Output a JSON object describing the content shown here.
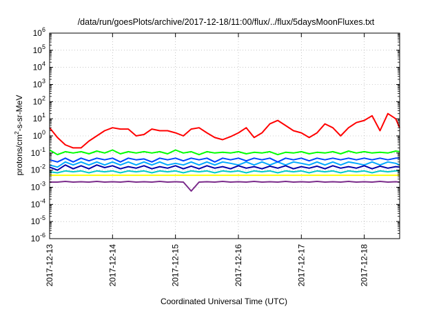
{
  "chart_data": {
    "type": "line",
    "title": "/data/run/goesPlots/archive/2017-12-18/11:00/flux/../flux/5daysMoonFluxes.txt",
    "xlabel": "Coordinated Universal Time (UTC)",
    "ylabel": {
      "pre": "protons/cm",
      "sup": "2",
      "post": "-s-sr-MeV"
    },
    "yscale": "log",
    "ylim": [
      1e-06,
      1000000.0
    ],
    "xlim": [
      "2017-12-13T00:00",
      "2017-12-18T13:30"
    ],
    "grid": true,
    "legend": "none",
    "x_ticks": [
      "2017-12-13",
      "2017-12-14",
      "2017-12-15",
      "2017-12-16",
      "2017-12-17",
      "2017-12-18"
    ],
    "y_ticks": [
      {
        "base": "10",
        "exp": "-6"
      },
      {
        "base": "10",
        "exp": "-5"
      },
      {
        "base": "10",
        "exp": "-4"
      },
      {
        "base": "10",
        "exp": "-3"
      },
      {
        "base": "10",
        "exp": "-2"
      },
      {
        "base": "10",
        "exp": "-1"
      },
      {
        "base": "10",
        "exp": "0"
      },
      {
        "base": "10",
        "exp": "1"
      },
      {
        "base": "10",
        "exp": "2"
      },
      {
        "base": "10",
        "exp": "3"
      },
      {
        "base": "10",
        "exp": "4"
      },
      {
        "base": "10",
        "exp": "5"
      },
      {
        "base": "10",
        "exp": "6"
      }
    ],
    "x": [
      "2017-12-13T00:00",
      "2017-12-13T03:00",
      "2017-12-13T06:00",
      "2017-12-13T09:00",
      "2017-12-13T12:00",
      "2017-12-13T15:00",
      "2017-12-13T18:00",
      "2017-12-13T21:00",
      "2017-12-14T00:00",
      "2017-12-14T03:00",
      "2017-12-14T06:00",
      "2017-12-14T09:00",
      "2017-12-14T12:00",
      "2017-12-14T15:00",
      "2017-12-14T18:00",
      "2017-12-14T21:00",
      "2017-12-15T00:00",
      "2017-12-15T03:00",
      "2017-12-15T06:00",
      "2017-12-15T09:00",
      "2017-12-15T12:00",
      "2017-12-15T15:00",
      "2017-12-15T18:00",
      "2017-12-15T21:00",
      "2017-12-16T00:00",
      "2017-12-16T03:00",
      "2017-12-16T06:00",
      "2017-12-16T09:00",
      "2017-12-16T12:00",
      "2017-12-16T15:00",
      "2017-12-16T18:00",
      "2017-12-16T21:00",
      "2017-12-17T00:00",
      "2017-12-17T03:00",
      "2017-12-17T06:00",
      "2017-12-17T09:00",
      "2017-12-17T12:00",
      "2017-12-17T15:00",
      "2017-12-17T18:00",
      "2017-12-17T21:00",
      "2017-12-18T00:00",
      "2017-12-18T03:00",
      "2017-12-18T06:00",
      "2017-12-18T09:00",
      "2017-12-18T12:00",
      "2017-12-18T13:30"
    ],
    "series": [
      {
        "color": "#ff0000",
        "values": [
          3,
          0.8,
          0.3,
          0.2,
          0.2,
          0.5,
          1,
          2,
          3,
          2.5,
          2.5,
          1,
          1.2,
          2.5,
          2,
          2,
          1.5,
          1,
          2.5,
          3,
          1.5,
          0.8,
          0.6,
          0.9,
          1.5,
          3,
          0.8,
          1.5,
          5,
          8,
          4,
          2,
          1.5,
          0.8,
          1.5,
          5,
          3,
          1,
          3,
          6,
          8,
          15,
          2,
          20,
          10,
          3
        ]
      },
      {
        "color": "#00ff00",
        "values": [
          0.15,
          0.08,
          0.12,
          0.1,
          0.12,
          0.09,
          0.13,
          0.1,
          0.15,
          0.09,
          0.12,
          0.1,
          0.12,
          0.1,
          0.12,
          0.09,
          0.15,
          0.1,
          0.12,
          0.08,
          0.12,
          0.1,
          0.11,
          0.1,
          0.12,
          0.09,
          0.11,
          0.1,
          0.12,
          0.08,
          0.11,
          0.1,
          0.12,
          0.09,
          0.11,
          0.1,
          0.12,
          0.09,
          0.13,
          0.1,
          0.12,
          0.1,
          0.11,
          0.1,
          0.13,
          0.12
        ]
      },
      {
        "color": "#00a8ff",
        "values": [
          0.02,
          0.015,
          0.03,
          0.02,
          0.03,
          0.02,
          0.03,
          0.02,
          0.03,
          0.02,
          0.03,
          0.02,
          0.03,
          0.02,
          0.03,
          0.02,
          0.025,
          0.02,
          0.03,
          0.02,
          0.03,
          0.02,
          0.03,
          0.025,
          0.02,
          0.03,
          0.02,
          0.03,
          0.02,
          0.03,
          0.02,
          0.03,
          0.025,
          0.02,
          0.03,
          0.02,
          0.03,
          0.02,
          0.03,
          0.025,
          0.02,
          0.03,
          0.02,
          0.03,
          0.025,
          0.02
        ]
      },
      {
        "color": "#0044ff",
        "values": [
          0.04,
          0.03,
          0.05,
          0.03,
          0.05,
          0.035,
          0.05,
          0.04,
          0.05,
          0.03,
          0.05,
          0.04,
          0.045,
          0.03,
          0.05,
          0.04,
          0.05,
          0.035,
          0.05,
          0.04,
          0.05,
          0.03,
          0.05,
          0.04,
          0.05,
          0.035,
          0.05,
          0.04,
          0.05,
          0.03,
          0.05,
          0.04,
          0.05,
          0.035,
          0.05,
          0.04,
          0.05,
          0.04,
          0.05,
          0.04,
          0.05,
          0.04,
          0.05,
          0.04,
          0.05,
          0.05
        ]
      },
      {
        "color": "#0000aa",
        "values": [
          0.015,
          0.01,
          0.02,
          0.012,
          0.018,
          0.012,
          0.02,
          0.014,
          0.018,
          0.012,
          0.016,
          0.013,
          0.018,
          0.012,
          0.016,
          0.013,
          0.018,
          0.012,
          0.017,
          0.012,
          0.018,
          0.013,
          0.016,
          0.012,
          0.018,
          0.013,
          0.016,
          0.012,
          0.017,
          0.013,
          0.018,
          0.012,
          0.016,
          0.013,
          0.017,
          0.012,
          0.018,
          0.013,
          0.016,
          0.013,
          0.018,
          0.012,
          0.017,
          0.013,
          0.016,
          0.015
        ]
      },
      {
        "color": "#00c8c8",
        "values": [
          0.008,
          0.007,
          0.009,
          0.008,
          0.009,
          0.007,
          0.009,
          0.008,
          0.009,
          0.007,
          0.009,
          0.008,
          0.009,
          0.007,
          0.009,
          0.008,
          0.009,
          0.007,
          0.009,
          0.008,
          0.009,
          0.007,
          0.009,
          0.008,
          0.009,
          0.007,
          0.009,
          0.008,
          0.009,
          0.007,
          0.009,
          0.008,
          0.009,
          0.007,
          0.009,
          0.008,
          0.009,
          0.007,
          0.009,
          0.008,
          0.009,
          0.007,
          0.009,
          0.008,
          0.009,
          0.009
        ]
      },
      {
        "color": "#ffff00",
        "values": [
          0.005,
          0.005,
          0.005,
          0.005,
          0.005,
          0.005,
          0.005,
          0.005,
          0.005,
          0.005,
          0.005,
          0.005,
          0.005,
          0.005,
          0.005,
          0.005,
          0.005,
          0.005,
          0.005,
          0.005,
          0.005,
          0.005,
          0.005,
          0.005,
          0.005,
          0.005,
          0.005,
          0.005,
          0.005,
          0.005,
          0.005,
          0.005,
          0.005,
          0.005,
          0.005,
          0.005,
          0.005,
          0.005,
          0.005,
          0.005,
          0.005,
          0.005,
          0.005,
          0.005,
          0.005,
          0.005
        ]
      },
      {
        "color": "#7a2a8a",
        "values": [
          0.002,
          0.002,
          0.0022,
          0.002,
          0.0021,
          0.002,
          0.0022,
          0.002,
          0.0021,
          0.002,
          0.0022,
          0.002,
          0.0021,
          0.002,
          0.0022,
          0.002,
          0.0021,
          0.002,
          0.0006,
          0.002,
          0.0021,
          0.002,
          0.0022,
          0.002,
          0.0021,
          0.002,
          0.0022,
          0.002,
          0.0021,
          0.002,
          0.0022,
          0.002,
          0.0021,
          0.002,
          0.0022,
          0.002,
          0.0021,
          0.002,
          0.0022,
          0.002,
          0.0021,
          0.002,
          0.0022,
          0.002,
          0.0021,
          0.002
        ]
      }
    ]
  }
}
